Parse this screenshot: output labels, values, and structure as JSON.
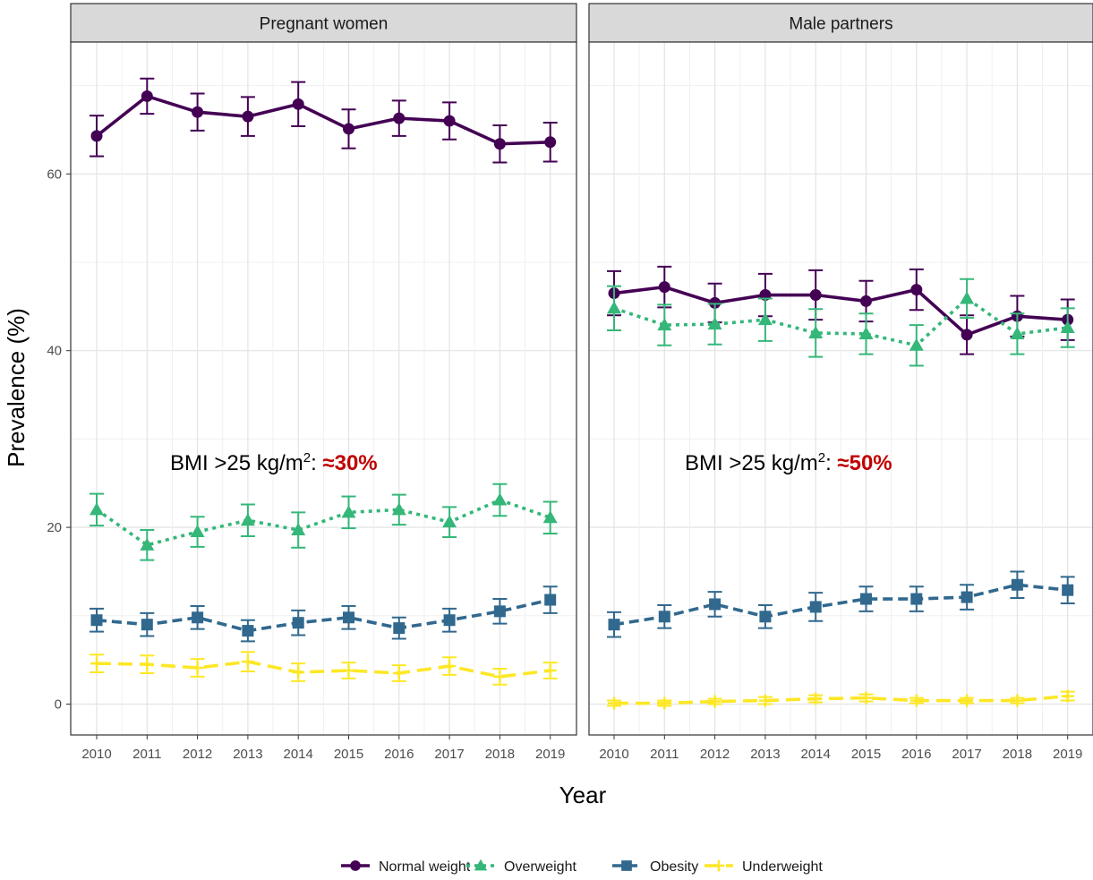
{
  "chart_data": {
    "type": "line",
    "ylabel": "Prevalence (%)",
    "xlabel": "Year",
    "ylim": [
      -3.5,
      74
    ],
    "y_ticks": [
      0,
      20,
      40,
      60
    ],
    "x": [
      "2010",
      "2011",
      "2012",
      "2013",
      "2014",
      "2015",
      "2016",
      "2017",
      "2018",
      "2019"
    ],
    "grid": true,
    "legend_position": "bottom",
    "legend": [
      {
        "name": "Normal weight",
        "color": "#440154",
        "marker": "circle",
        "dash": "solid"
      },
      {
        "name": "Overweight",
        "color": "#35b779",
        "marker": "triangle",
        "dash": "dotted"
      },
      {
        "name": "Obesity",
        "color": "#31688e",
        "marker": "square",
        "dash": "dashed"
      },
      {
        "name": "Underweight",
        "color": "#fde725",
        "marker": "plus",
        "dash": "longdash"
      }
    ],
    "panels": [
      {
        "title": "Pregnant women",
        "annotation": {
          "prefix": "BMI >25 kg/m",
          "sup": "2",
          "colon": ": ",
          "value": "≈30%"
        },
        "series": [
          {
            "name": "Normal weight",
            "values": [
              64.3,
              68.8,
              67.0,
              66.5,
              67.9,
              65.1,
              66.3,
              66.0,
              63.4,
              63.6
            ],
            "err": [
              2.3,
              2.0,
              2.1,
              2.2,
              2.5,
              2.2,
              2.0,
              2.1,
              2.1,
              2.2
            ]
          },
          {
            "name": "Overweight",
            "values": [
              22.0,
              18.0,
              19.5,
              20.8,
              19.7,
              21.7,
              22.0,
              20.6,
              23.1,
              21.1
            ],
            "err": [
              1.8,
              1.7,
              1.7,
              1.8,
              2.0,
              1.8,
              1.7,
              1.7,
              1.8,
              1.8
            ]
          },
          {
            "name": "Obesity",
            "values": [
              9.5,
              9.0,
              9.8,
              8.3,
              9.2,
              9.8,
              8.6,
              9.5,
              10.5,
              11.8
            ],
            "err": [
              1.3,
              1.3,
              1.3,
              1.2,
              1.4,
              1.3,
              1.2,
              1.3,
              1.4,
              1.5
            ]
          },
          {
            "name": "Underweight",
            "values": [
              4.6,
              4.5,
              4.1,
              4.8,
              3.6,
              3.8,
              3.5,
              4.3,
              3.1,
              3.8
            ],
            "err": [
              1.0,
              1.0,
              1.0,
              1.1,
              1.0,
              0.9,
              0.9,
              1.0,
              0.9,
              0.9
            ]
          }
        ]
      },
      {
        "title": "Male partners",
        "annotation": {
          "prefix": "BMI >25 kg/m",
          "sup": "2",
          "colon": ": ",
          "value": "≈50%"
        },
        "series": [
          {
            "name": "Normal weight",
            "values": [
              46.5,
              47.2,
              45.4,
              46.3,
              46.3,
              45.6,
              46.9,
              41.8,
              43.9,
              43.5
            ],
            "err": [
              2.5,
              2.3,
              2.2,
              2.4,
              2.8,
              2.3,
              2.3,
              2.2,
              2.3,
              2.3
            ]
          },
          {
            "name": "Overweight",
            "values": [
              44.8,
              42.9,
              43.0,
              43.5,
              42.0,
              41.9,
              40.6,
              45.9,
              41.9,
              42.6
            ],
            "err": [
              2.5,
              2.3,
              2.3,
              2.4,
              2.7,
              2.3,
              2.3,
              2.2,
              2.3,
              2.2
            ]
          },
          {
            "name": "Obesity",
            "values": [
              9.0,
              9.9,
              11.3,
              9.9,
              11.0,
              11.9,
              11.9,
              12.1,
              13.5,
              12.9
            ],
            "err": [
              1.4,
              1.3,
              1.4,
              1.3,
              1.6,
              1.4,
              1.4,
              1.4,
              1.5,
              1.5
            ]
          },
          {
            "name": "Underweight",
            "values": [
              0.1,
              0.1,
              0.3,
              0.4,
              0.6,
              0.7,
              0.4,
              0.4,
              0.4,
              0.9
            ],
            "err": [
              0.3,
              0.3,
              0.3,
              0.4,
              0.4,
              0.4,
              0.3,
              0.3,
              0.3,
              0.5
            ]
          }
        ]
      }
    ]
  }
}
